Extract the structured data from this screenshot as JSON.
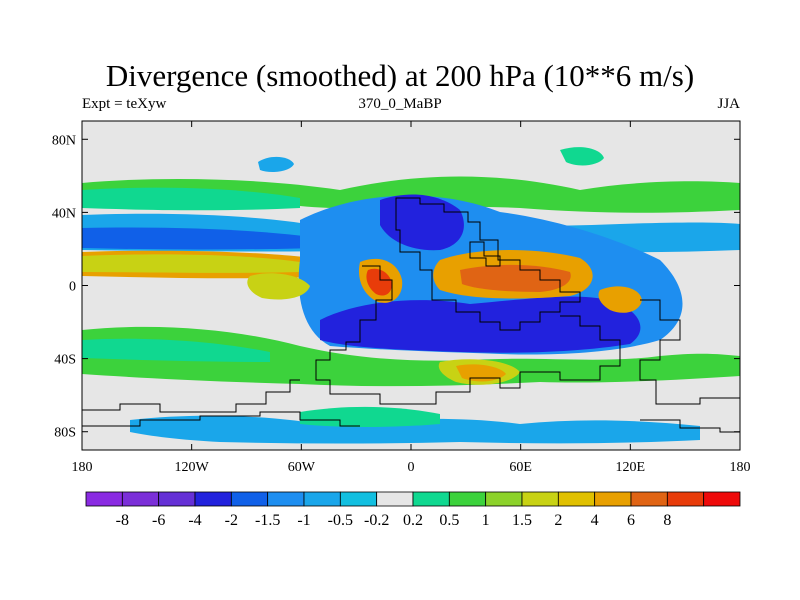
{
  "header": {
    "title": "Divergence (smoothed) at 200 hPa (10**6 m/s)",
    "left_label": "Expt = teXyw",
    "center_label": "370_0_MaBP",
    "right_label": "JJA"
  },
  "map": {
    "lon_range": [
      -180,
      180
    ],
    "lat_range": [
      -90,
      90
    ],
    "lat_ticks": [
      {
        "value": 80,
        "label": "80N"
      },
      {
        "value": 40,
        "label": "40N"
      },
      {
        "value": 0,
        "label": "0"
      },
      {
        "value": -40,
        "label": "40S"
      },
      {
        "value": -80,
        "label": "80S"
      }
    ],
    "lon_ticks": [
      {
        "value": -180,
        "label": "180"
      },
      {
        "value": -120,
        "label": "120W"
      },
      {
        "value": -60,
        "label": "60W"
      },
      {
        "value": 0,
        "label": "0"
      },
      {
        "value": 60,
        "label": "60E"
      },
      {
        "value": 120,
        "label": "120E"
      },
      {
        "value": 180,
        "label": "180"
      }
    ]
  },
  "colorbar": {
    "labels": [
      "-8",
      "-6",
      "-4",
      "-2",
      "-1.5",
      "-1",
      "-0.5",
      "-0.2",
      "0.2",
      "0.5",
      "1",
      "1.5",
      "2",
      "4",
      "6",
      "8"
    ],
    "colors": [
      "#8a2be2",
      "#7b2fd8",
      "#6530d6",
      "#2222dd",
      "#1060e8",
      "#1e8ef0",
      "#1aa6ea",
      "#12bfe0",
      "#e6e6e6",
      "#10d890",
      "#3cd23c",
      "#8cd22a",
      "#c8d214",
      "#e0c000",
      "#e8a000",
      "#e06414",
      "#e83c0a",
      "#ee0a0a"
    ],
    "colors_note": ""
  },
  "palette": {
    "blue_dark": "#2222dd",
    "blue": "#1060e8",
    "blue_mid": "#1e8ef0",
    "cyan": "#1aa6ea",
    "light_cyan": "#12bfe0",
    "grey": "#e6e6e6",
    "teal": "#10d890",
    "green": "#3cd23c",
    "lime": "#8cd22a",
    "yellow": "#c8d214",
    "gold": "#e0c000",
    "orange": "#e8a000",
    "dark_orange": "#e06414",
    "red_orange": "#e83c0a"
  }
}
